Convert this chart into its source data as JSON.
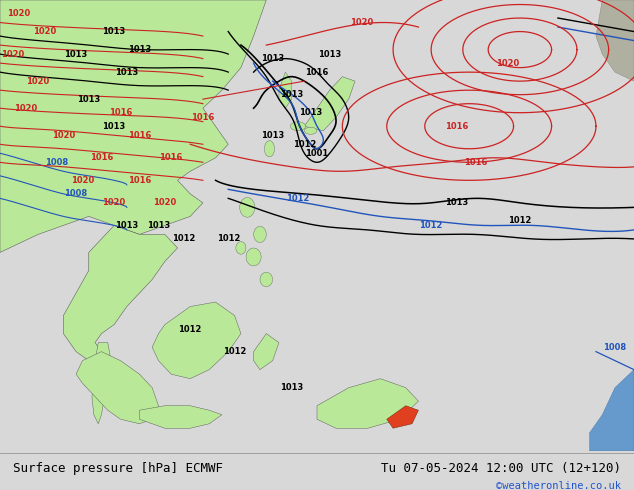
{
  "title_left": "Surface pressure [hPa] ECMWF",
  "title_right": "Tu 07-05-2024 12:00 UTC (12+120)",
  "credit": "©weatheronline.co.uk",
  "ocean_color": "#d8d8d8",
  "land_color": "#b8e898",
  "land_gray": "#b0b0a0",
  "fig_width": 6.34,
  "fig_height": 4.9,
  "dpi": 100,
  "bottom_bar_color": "#d8d8d8",
  "title_fontsize": 9,
  "credit_color": "#2255cc"
}
